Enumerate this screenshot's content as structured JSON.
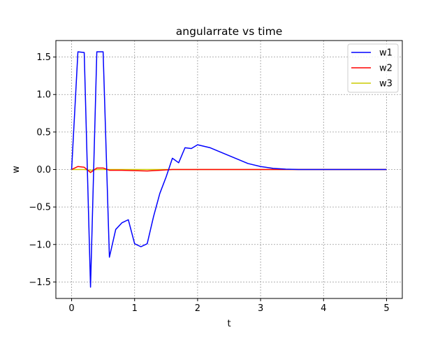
{
  "chart_data": {
    "type": "line",
    "title": "angularrate vs time",
    "xlabel": "t",
    "ylabel": "w",
    "xlim": [
      -0.25,
      5.25
    ],
    "ylim": [
      -1.72,
      1.72
    ],
    "xticks": [
      0,
      1,
      2,
      3,
      4,
      5
    ],
    "xtick_labels": [
      "0",
      "1",
      "2",
      "3",
      "4",
      "5"
    ],
    "yticks": [
      -1.5,
      -1.0,
      -0.5,
      0.0,
      0.5,
      1.0,
      1.5
    ],
    "ytick_labels": [
      "−1.5",
      "−1.0",
      "−0.5",
      "0.0",
      "0.5",
      "1.0",
      "1.5"
    ],
    "grid": true,
    "legend_position": "top-right",
    "series": [
      {
        "name": "w1",
        "color": "#0000ff",
        "x": [
          0,
          0.1,
          0.2,
          0.3,
          0.4,
          0.5,
          0.6,
          0.7,
          0.8,
          0.9,
          1.0,
          1.1,
          1.2,
          1.3,
          1.4,
          1.5,
          1.6,
          1.7,
          1.8,
          1.9,
          2.0,
          2.1,
          2.2,
          2.4,
          2.6,
          2.8,
          3.0,
          3.2,
          3.4,
          3.6,
          4.0,
          4.5,
          5.0
        ],
        "y": [
          0.0,
          1.57,
          1.56,
          -1.57,
          1.57,
          1.57,
          -1.17,
          -0.8,
          -0.71,
          -0.67,
          -0.99,
          -1.03,
          -0.99,
          -0.63,
          -0.32,
          -0.1,
          0.15,
          0.09,
          0.29,
          0.28,
          0.33,
          0.31,
          0.29,
          0.22,
          0.15,
          0.08,
          0.04,
          0.015,
          0.005,
          0.0,
          0.0,
          0.0,
          0.0
        ]
      },
      {
        "name": "w2",
        "color": "#ff0000",
        "x": [
          0,
          0.1,
          0.2,
          0.3,
          0.4,
          0.5,
          0.6,
          0.8,
          1.0,
          1.2,
          1.4,
          1.6,
          2.0,
          3.0,
          4.0,
          5.0
        ],
        "y": [
          0.0,
          0.04,
          0.03,
          -0.04,
          0.02,
          0.02,
          -0.01,
          -0.01,
          -0.015,
          -0.02,
          -0.01,
          0.0,
          0.0,
          0.0,
          0.0,
          0.0
        ]
      },
      {
        "name": "w3",
        "color": "#cccc00",
        "x": [
          0,
          0.2,
          0.3,
          0.4,
          0.6,
          1.0,
          1.5,
          2.0,
          3.0,
          4.0,
          5.0
        ],
        "y": [
          0.0,
          0.0,
          -0.01,
          0.0,
          0.0,
          0.0,
          0.0,
          0.0,
          0.0,
          0.0,
          0.0
        ]
      }
    ]
  }
}
